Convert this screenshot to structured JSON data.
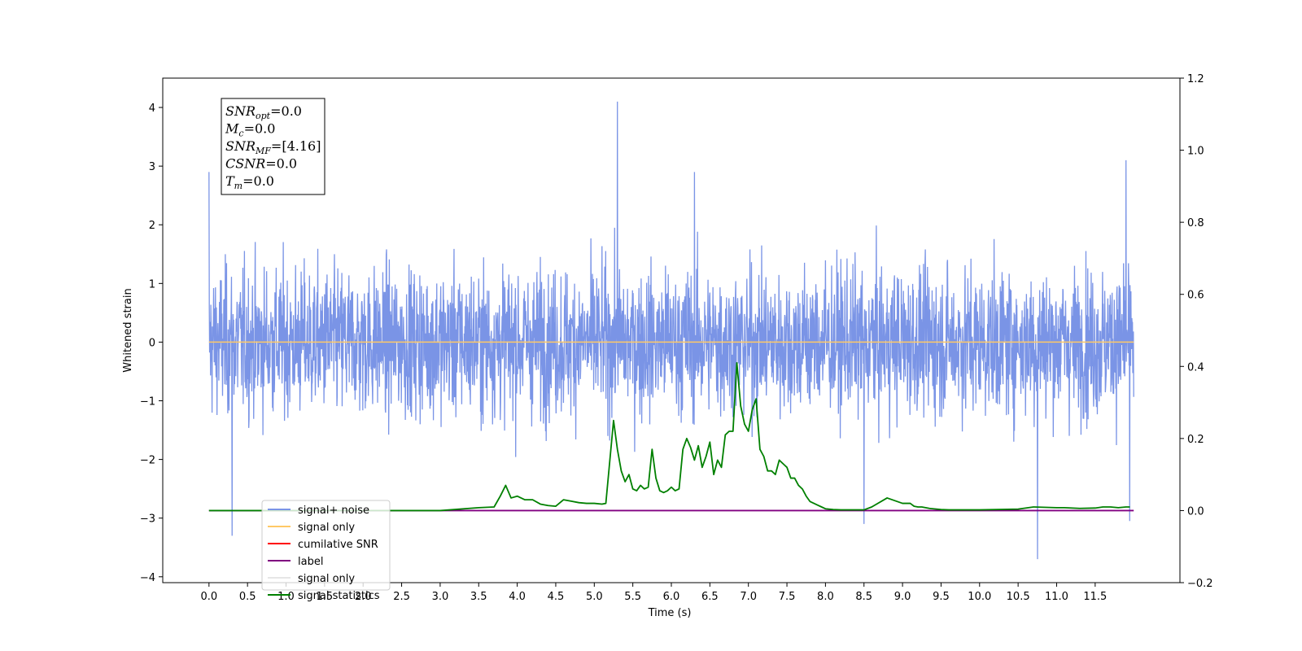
{
  "chart_data": {
    "type": "line",
    "xlabel": "Time (s)",
    "ylabel": "Whitened strain",
    "xlim": [
      -0.6,
      12.6
    ],
    "ylim": [
      -4.1,
      4.5
    ],
    "y2lim": [
      -0.2,
      1.2
    ],
    "x_tick_labels": [
      "0.0",
      "0.5",
      "1.0",
      "1.5",
      "2.0",
      "2.5",
      "3.0",
      "3.5",
      "4.0",
      "4.5",
      "5.0",
      "5.5",
      "6.0",
      "6.5",
      "7.0",
      "7.5",
      "8.0",
      "8.5",
      "9.0",
      "9.5",
      "10.0",
      "10.5",
      "11.0",
      "11.5"
    ],
    "y_tick_labels": [
      "4",
      "3",
      "2",
      "1",
      "0",
      "−1",
      "−2",
      "−3",
      "−4"
    ],
    "y2_tick_labels": [
      "1.2",
      "1.0",
      "0.8",
      "0.6",
      "0.4",
      "0.2",
      "0.0",
      "−0.2"
    ],
    "info_box": [
      {
        "sym": "SNR",
        "sub": "opt",
        "val": "=0.0"
      },
      {
        "sym": "M",
        "sub": "c",
        "val": "=0.0"
      },
      {
        "sym": "SNR",
        "sub": "MF",
        "val": "=[4.16]"
      },
      {
        "sym": "CSNR",
        "sub": "",
        "val": "=0.0"
      },
      {
        "sym": "T",
        "sub": "m",
        "val": "=0.0"
      }
    ],
    "legend": {
      "placement": "lower-left",
      "entries": [
        {
          "label": "signal+ noise",
          "color": "#7a94e6"
        },
        {
          "label": "signal only",
          "color": "#ffc966"
        },
        {
          "label": "cumilative SNR",
          "color": "#ff0000"
        },
        {
          "label": "label",
          "color": "#800080"
        },
        {
          "label": "signal only",
          "color": "#e6e6e6"
        },
        {
          "label": "signal statistics",
          "color": "#008000"
        }
      ]
    },
    "series": [
      {
        "name": "signal+ noise",
        "axis": "left",
        "color": "#7a94e6",
        "x_range": [
          0.0,
          12.0
        ],
        "typical_range": [
          -1.7,
          1.7
        ],
        "notable_spikes": [
          {
            "x": 0.0,
            "y": 2.9
          },
          {
            "x": 0.3,
            "y": -3.3
          },
          {
            "x": 5.3,
            "y": 4.1
          },
          {
            "x": 6.3,
            "y": 2.9
          },
          {
            "x": 8.5,
            "y": -3.1
          },
          {
            "x": 10.75,
            "y": -3.7
          },
          {
            "x": 11.9,
            "y": 3.1
          },
          {
            "x": 11.95,
            "y": -3.05
          }
        ]
      },
      {
        "name": "signal only",
        "axis": "left",
        "color": "#ffc966",
        "x": [
          0.0,
          12.0
        ],
        "y": [
          0.0,
          0.0
        ]
      },
      {
        "name": "label",
        "axis": "right",
        "color": "#800080",
        "x": [
          0.0,
          12.0
        ],
        "y": [
          0.0,
          0.0
        ]
      },
      {
        "name": "signal statistics",
        "axis": "right",
        "color": "#008000",
        "x": [
          0.0,
          3.0,
          3.5,
          3.7,
          3.78,
          3.85,
          3.92,
          4.0,
          4.1,
          4.2,
          4.3,
          4.4,
          4.5,
          4.6,
          4.7,
          4.8,
          4.9,
          5.0,
          5.1,
          5.15,
          5.25,
          5.3,
          5.35,
          5.4,
          5.45,
          5.5,
          5.55,
          5.6,
          5.65,
          5.7,
          5.75,
          5.8,
          5.85,
          5.9,
          5.95,
          6.0,
          6.05,
          6.1,
          6.15,
          6.2,
          6.25,
          6.3,
          6.35,
          6.4,
          6.45,
          6.5,
          6.55,
          6.6,
          6.65,
          6.7,
          6.75,
          6.8,
          6.85,
          6.9,
          6.95,
          7.0,
          7.05,
          7.1,
          7.15,
          7.2,
          7.25,
          7.3,
          7.35,
          7.4,
          7.45,
          7.5,
          7.55,
          7.6,
          7.65,
          7.7,
          7.75,
          7.8,
          7.85,
          7.9,
          7.95,
          8.0,
          8.1,
          8.2,
          8.3,
          8.4,
          8.5,
          8.6,
          8.8,
          9.0,
          9.1,
          9.15,
          9.2,
          9.25,
          9.3,
          9.35,
          9.4,
          9.5,
          9.6,
          9.7,
          9.8,
          10.0,
          10.5,
          10.7,
          11.0,
          11.1,
          11.3,
          11.5,
          11.6,
          11.7,
          11.8,
          11.9,
          11.95
        ],
        "y": [
          0.0,
          0.0,
          0.008,
          0.01,
          0.04,
          0.07,
          0.035,
          0.04,
          0.03,
          0.03,
          0.018,
          0.014,
          0.012,
          0.03,
          0.026,
          0.022,
          0.02,
          0.02,
          0.018,
          0.02,
          0.25,
          0.17,
          0.11,
          0.08,
          0.1,
          0.06,
          0.055,
          0.07,
          0.06,
          0.065,
          0.17,
          0.09,
          0.055,
          0.05,
          0.055,
          0.065,
          0.055,
          0.06,
          0.17,
          0.2,
          0.175,
          0.14,
          0.18,
          0.12,
          0.15,
          0.19,
          0.1,
          0.14,
          0.12,
          0.21,
          0.22,
          0.22,
          0.41,
          0.29,
          0.24,
          0.22,
          0.28,
          0.31,
          0.17,
          0.15,
          0.11,
          0.11,
          0.1,
          0.14,
          0.13,
          0.12,
          0.09,
          0.09,
          0.07,
          0.06,
          0.04,
          0.025,
          0.02,
          0.015,
          0.01,
          0.005,
          0.003,
          0.002,
          0.002,
          0.002,
          0.002,
          0.01,
          0.035,
          0.02,
          0.02,
          0.012,
          0.01,
          0.01,
          0.008,
          0.006,
          0.005,
          0.003,
          0.002,
          0.002,
          0.002,
          0.002,
          0.004,
          0.01,
          0.008,
          0.008,
          0.006,
          0.007,
          0.01,
          0.01,
          0.008,
          0.01,
          0.01
        ]
      }
    ]
  }
}
